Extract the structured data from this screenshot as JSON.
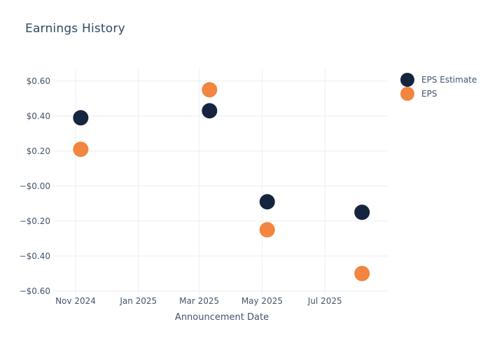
{
  "colors": {
    "background": "#ffffff",
    "navy": "#15253f",
    "orange": "#f2853f",
    "gridline": "#e9eef7",
    "axis_text": "#42546b",
    "title_text": "#2f4a63"
  },
  "chart_data": {
    "type": "scatter",
    "title": "Earnings History",
    "xlabel": "Announcement Date",
    "ylabel": "",
    "grid": true,
    "legend_position": "right",
    "marker_radius": 11,
    "x_axis": {
      "type": "time",
      "range": [
        "2024-10-13",
        "2025-08-31"
      ],
      "ticks": [
        {
          "label": "Nov 2024",
          "date": "2024-11-01"
        },
        {
          "label": "Jan 2025",
          "date": "2025-01-01"
        },
        {
          "label": "Mar 2025",
          "date": "2025-03-01"
        },
        {
          "label": "May 2025",
          "date": "2025-05-01"
        },
        {
          "label": "Jul 2025",
          "date": "2025-07-01"
        }
      ]
    },
    "y_axis": {
      "range": [
        -0.601,
        0.671
      ],
      "ticks": [
        {
          "label": "$0.60",
          "value": 0.6
        },
        {
          "label": "$0.40",
          "value": 0.4
        },
        {
          "label": "$0.20",
          "value": 0.2
        },
        {
          "label": "−$0.00",
          "value": 0.0
        },
        {
          "label": "−$0.20",
          "value": -0.2
        },
        {
          "label": "−$0.40",
          "value": -0.4
        },
        {
          "label": "−$0.60",
          "value": -0.6
        }
      ]
    },
    "series": [
      {
        "name": "EPS Estimate",
        "color": "#15253f",
        "points": [
          {
            "date": "2024-11-06",
            "value": 0.39
          },
          {
            "date": "2025-03-11",
            "value": 0.43
          },
          {
            "date": "2025-05-06",
            "value": -0.09
          },
          {
            "date": "2025-08-06",
            "value": -0.15
          }
        ]
      },
      {
        "name": "EPS",
        "color": "#f2853f",
        "points": [
          {
            "date": "2024-11-06",
            "value": 0.21
          },
          {
            "date": "2025-03-11",
            "value": 0.55
          },
          {
            "date": "2025-05-06",
            "value": -0.25
          },
          {
            "date": "2025-08-06",
            "value": -0.5
          }
        ]
      }
    ]
  }
}
